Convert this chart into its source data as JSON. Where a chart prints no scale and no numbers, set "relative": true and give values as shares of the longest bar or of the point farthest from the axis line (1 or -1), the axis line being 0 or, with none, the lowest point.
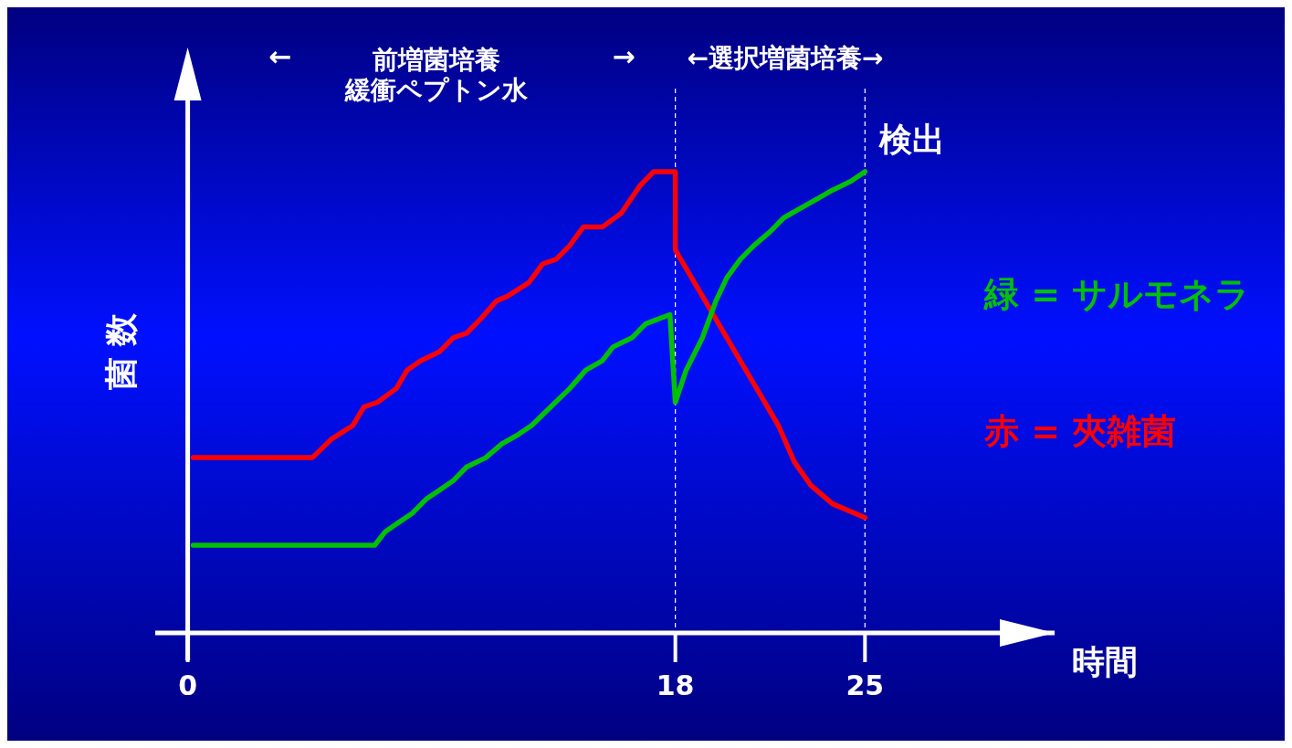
{
  "chart_data": {
    "type": "line",
    "xlabel": "時間",
    "ylabel": "菌 数",
    "relative": true,
    "xlim": [
      -1.2,
      32
    ],
    "xticks": [
      0,
      18,
      25
    ],
    "legend": "right",
    "line_style": "solid",
    "series": [
      {
        "name": "赤 = 夾雑菌",
        "color": "#ff0000",
        "x": [
          0.2,
          4.6,
          5.3,
          6.1,
          6.5,
          7.0,
          7.7,
          8.1,
          8.6,
          9.3,
          9.8,
          10.3,
          10.8,
          11.4,
          11.8,
          12.6,
          13.1,
          13.6,
          14.1,
          14.6,
          15.3,
          16.0,
          16.7,
          17.2,
          17.5,
          18,
          18,
          18.7,
          19.5,
          20.4,
          21.1,
          21.8,
          22.4,
          23.0,
          23.8,
          25
        ],
        "values": [
          0.38,
          0.38,
          0.42,
          0.45,
          0.49,
          0.5,
          0.53,
          0.57,
          0.59,
          0.61,
          0.64,
          0.65,
          0.68,
          0.72,
          0.73,
          0.76,
          0.8,
          0.81,
          0.84,
          0.88,
          0.88,
          0.91,
          0.97,
          1.0,
          1.0,
          1.0,
          0.83,
          0.76,
          0.68,
          0.59,
          0.52,
          0.45,
          0.37,
          0.32,
          0.28,
          0.25
        ]
      },
      {
        "name": "緑 = サルモネラ",
        "color": "#00c000",
        "x": [
          0.2,
          6.9,
          7.3,
          7.8,
          8.3,
          8.8,
          9.3,
          9.8,
          10.3,
          11.0,
          11.6,
          12.2,
          12.7,
          13.4,
          14.1,
          14.7,
          15.3,
          15.7,
          16.4,
          16.9,
          17.8,
          18,
          18.4,
          19.0,
          19.5,
          19.9,
          20.4,
          20.9,
          21.5,
          22.0,
          22.6,
          23.2,
          23.8,
          24.5,
          25
        ],
        "values": [
          0.19,
          0.19,
          0.22,
          0.24,
          0.26,
          0.29,
          0.31,
          0.33,
          0.36,
          0.38,
          0.41,
          0.43,
          0.45,
          0.49,
          0.53,
          0.57,
          0.59,
          0.62,
          0.64,
          0.67,
          0.69,
          0.5,
          0.57,
          0.64,
          0.72,
          0.77,
          0.81,
          0.84,
          0.87,
          0.9,
          0.92,
          0.94,
          0.96,
          0.98,
          1.0
        ]
      }
    ],
    "ref_lines": [
      {
        "axis": "x",
        "value": 18,
        "label": null,
        "color": "#ffffff",
        "line_style": "dashed"
      },
      {
        "axis": "x",
        "value": 25,
        "label": "検出",
        "color": "#ffffff",
        "line_style": "dashed"
      }
    ],
    "annotations": [
      "←",
      "前増菌培養",
      "緩衝ペプトン水",
      "→",
      "←選択増菌培養→"
    ]
  }
}
